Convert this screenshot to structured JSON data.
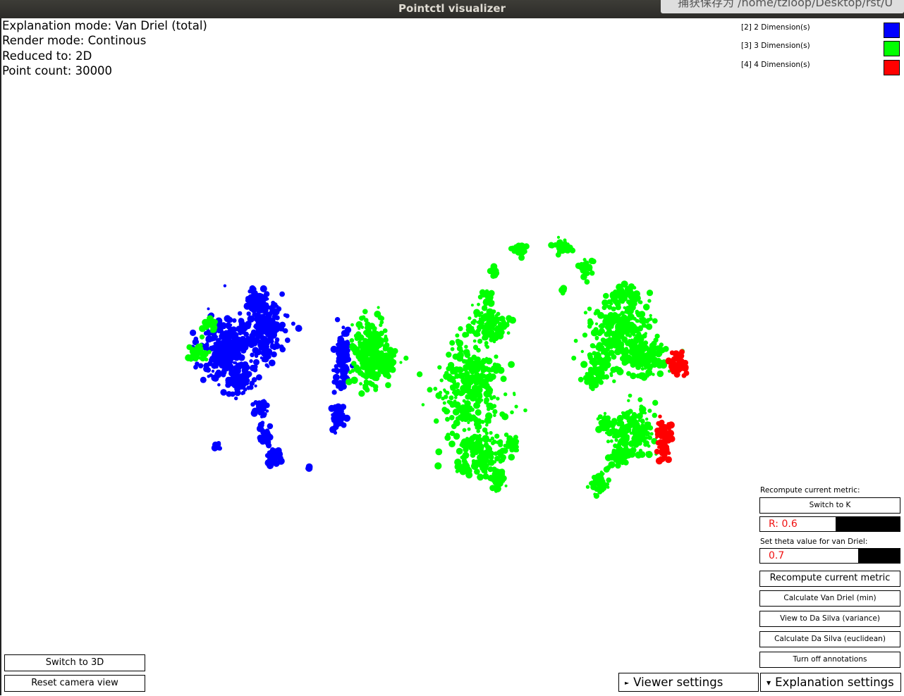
{
  "window": {
    "title": "Pointctl visualizer"
  },
  "overlay": {
    "capture_tip": "捕获保存为 /home/tzloop/Desktop/rst/U"
  },
  "info": {
    "explanation_mode": "Explanation mode: Van Driel (total)",
    "render_mode": "Render mode: Continous",
    "reduced_to": "Reduced to: 2D",
    "point_count": "Point count: 30000"
  },
  "legend": [
    {
      "label": "[2] 2 Dimension(s)",
      "color": "#0000ff"
    },
    {
      "label": "[3] 3 Dimension(s)",
      "color": "#00ff00"
    },
    {
      "label": "[4] 4 Dimension(s)",
      "color": "#ff0000"
    }
  ],
  "colors": {
    "dim2": "#0000ff",
    "dim3": "#00ff00",
    "dim4": "#ff0000"
  },
  "panel": {
    "recompute_label": "Recompute current metric:",
    "switch_k": "Switch to K",
    "r_slider": {
      "text": "R: 0.6",
      "fraction": 0.54
    },
    "theta_label": "Set theta value for van Driel:",
    "theta_slider": {
      "text": "0.7",
      "fraction": 0.7
    },
    "recompute_btn": "Recompute current metric",
    "van_driel_min": "Calculate Van Driel (min)",
    "da_silva_variance": "View to Da Silva (variance)",
    "da_silva_euclidean": "Calculate Da Silva (euclidean)",
    "annotations_off": "Turn off annotations"
  },
  "bottom_left": {
    "switch_3d": "Switch to 3D",
    "reset_camera": "Reset camera view"
  },
  "bottom_tabs": {
    "viewer": {
      "arrow": "►",
      "label": "Viewer settings"
    },
    "explanation": {
      "arrow": "▼",
      "label": "Explanation settings"
    }
  }
}
